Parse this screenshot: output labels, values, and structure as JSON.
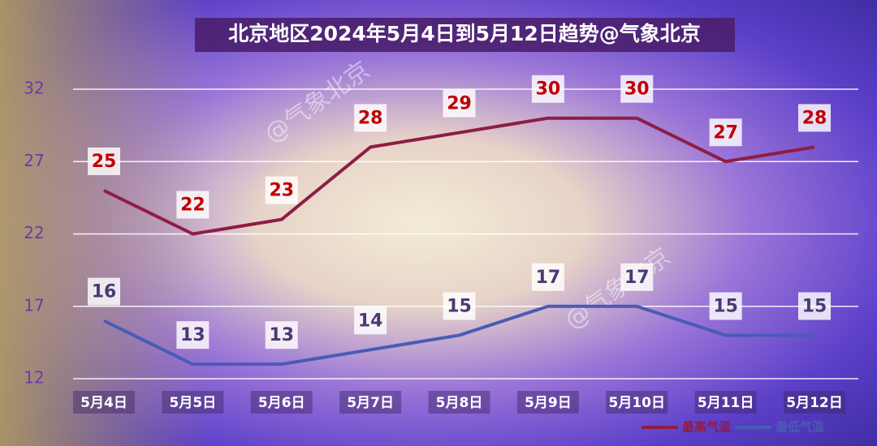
{
  "chart_data": {
    "type": "line",
    "title": "北京地区2024年5月4日到5月12日趋势@气象北京",
    "watermark": "@气象北京",
    "categories": [
      "5月4日",
      "5月5日",
      "5月6日",
      "5月7日",
      "5月8日",
      "5月9日",
      "5月10日",
      "5月11日",
      "5月12日"
    ],
    "series": [
      {
        "name": "最高气温",
        "color": "#8e1d45",
        "label_color": "#c00000",
        "values": [
          25,
          22,
          23,
          28,
          29,
          30,
          30,
          27,
          28
        ]
      },
      {
        "name": "最低气温",
        "color": "#4a5bb5",
        "label_color": "#4b3a73",
        "values": [
          16,
          13,
          13,
          14,
          15,
          17,
          17,
          15,
          15
        ]
      }
    ],
    "ylim": [
      12,
      32
    ],
    "yticks": [
      12,
      17,
      22,
      27,
      32
    ],
    "grid": true
  }
}
